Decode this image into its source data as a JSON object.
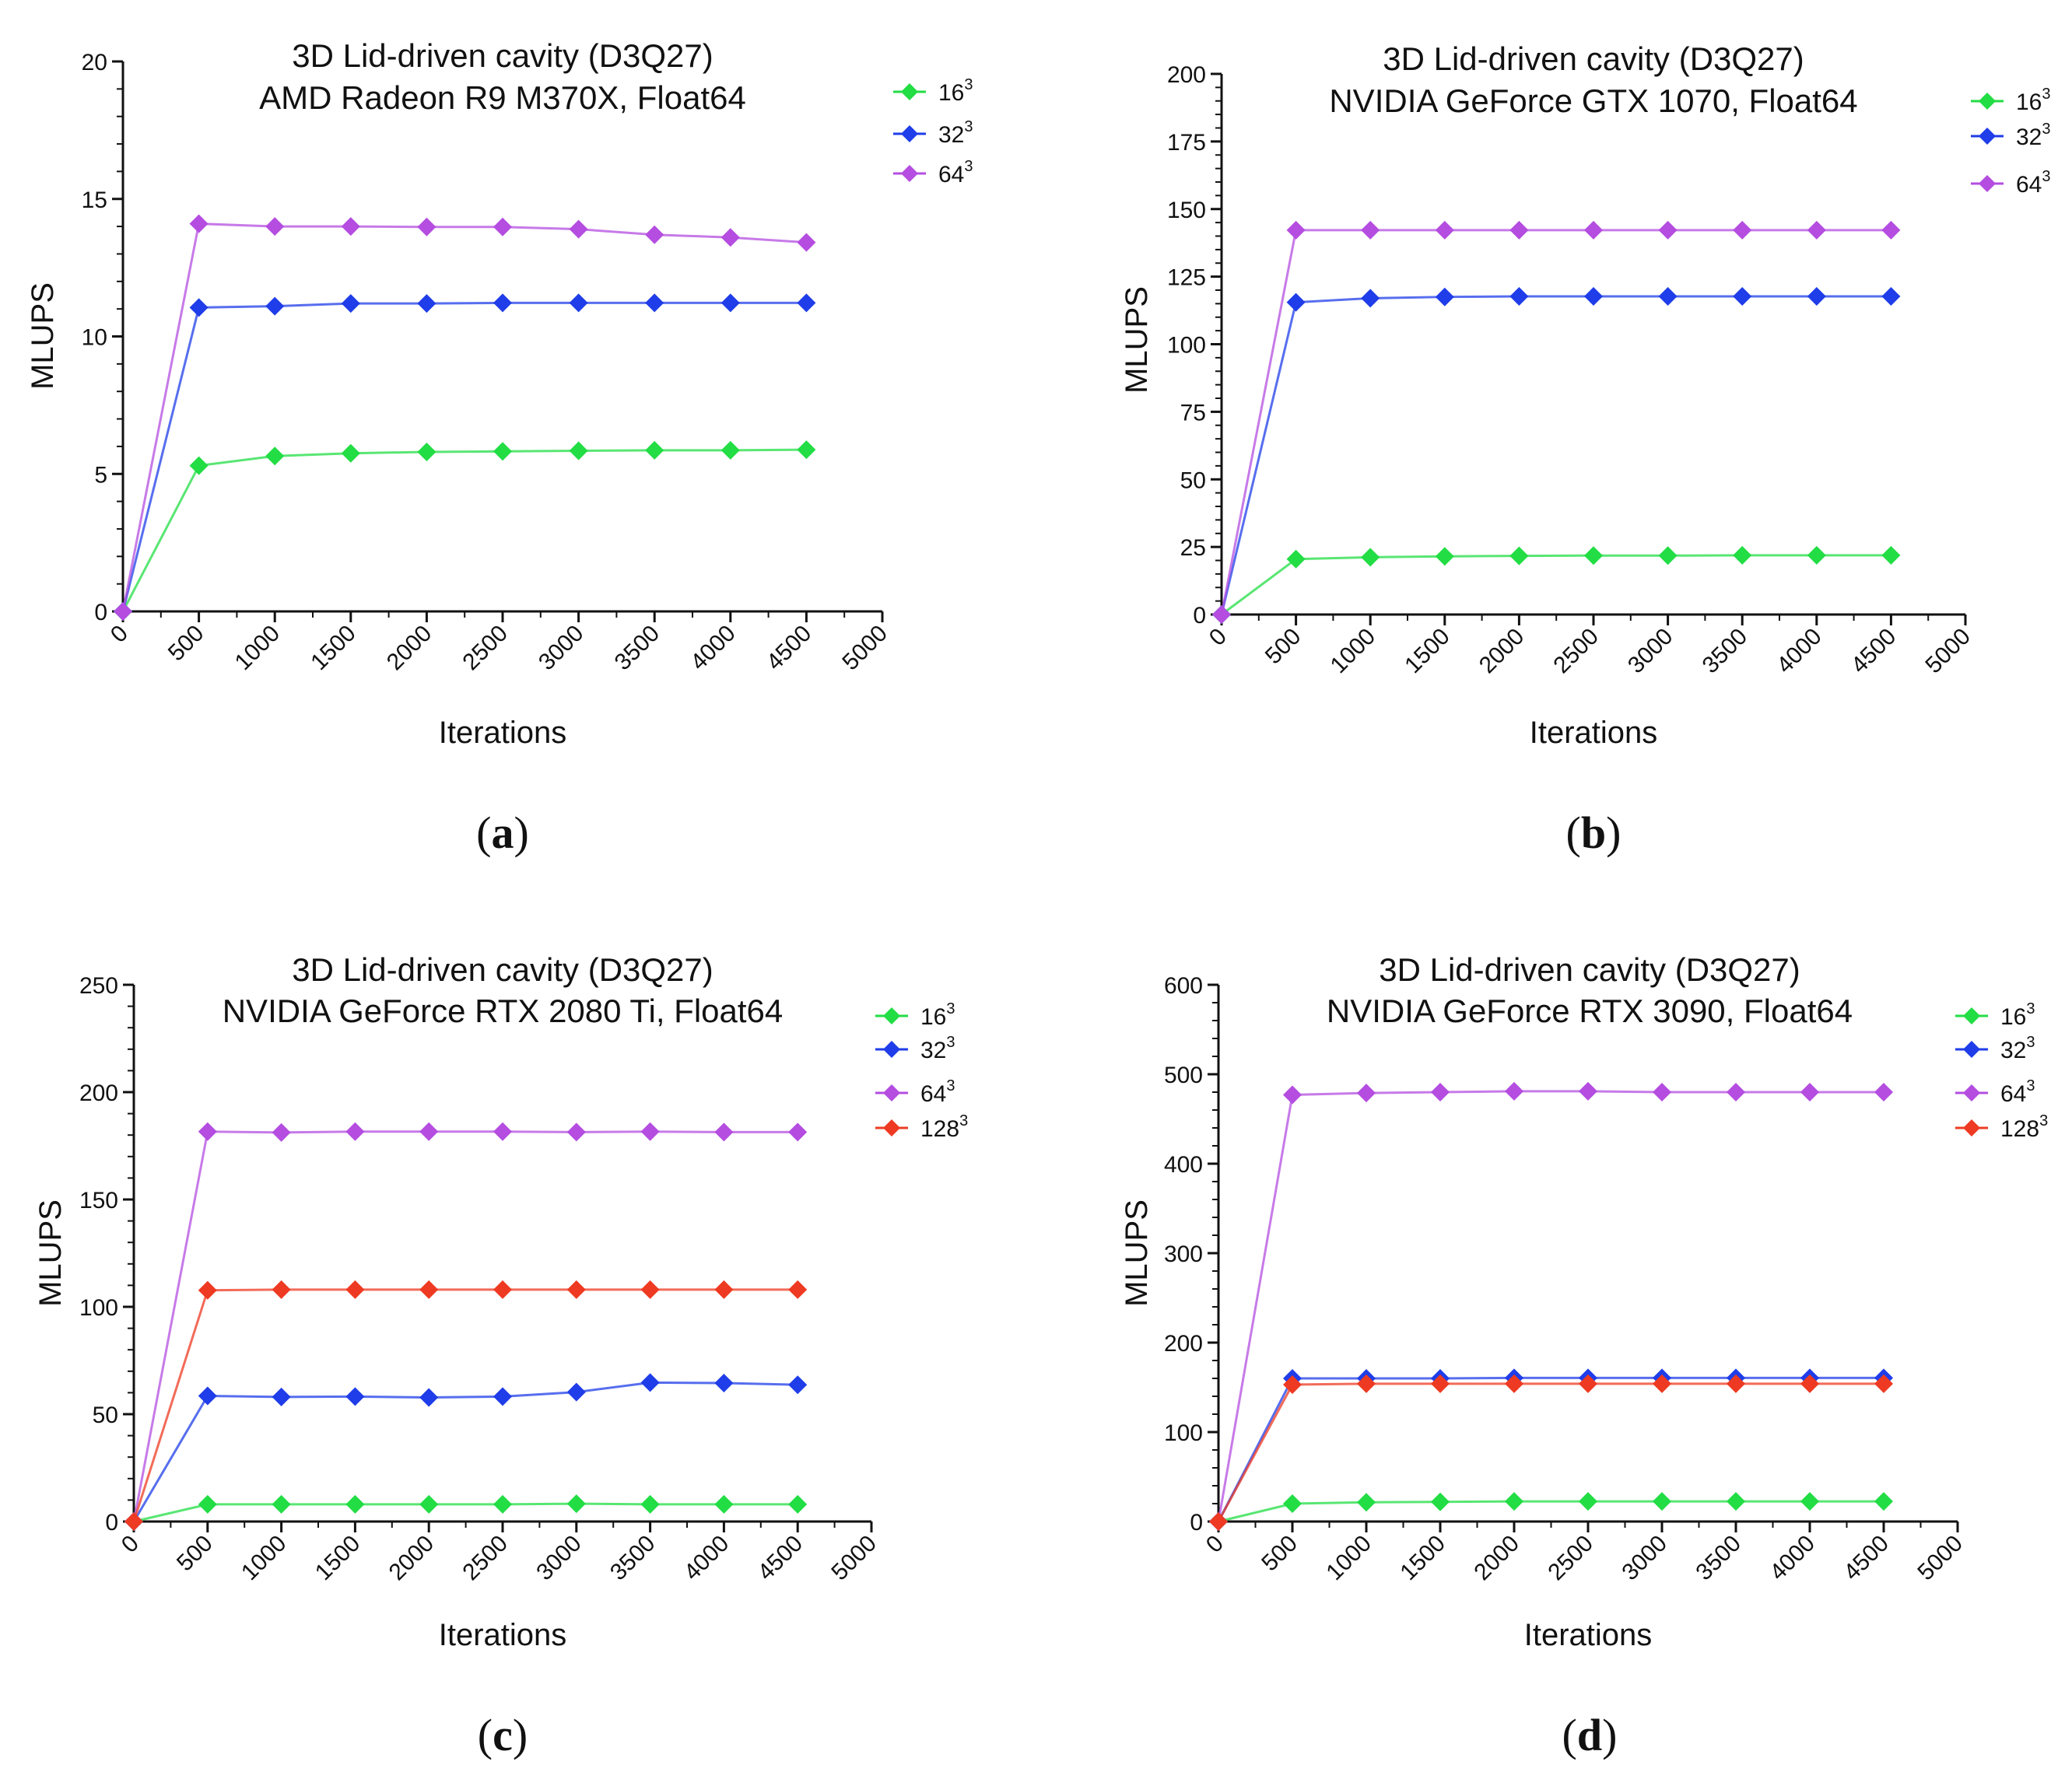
{
  "chart_data": [
    {
      "type": "line",
      "panel": "a",
      "title_line1": "3D Lid-driven cavity (D3Q27)",
      "title_line2": "AMD Radeon R9 M370X, Float64",
      "xlabel": "Iterations",
      "ylabel": "MLUPS",
      "xlim": [
        0,
        5000
      ],
      "ylim": [
        0,
        20
      ],
      "xticks": [
        "0",
        "500",
        "1000",
        "1500",
        "2000",
        "2500",
        "3000",
        "3500",
        "4000",
        "4500",
        "5000"
      ],
      "yticks": [
        "0",
        "5",
        "10",
        "15",
        "20"
      ],
      "x": [
        0,
        500,
        1000,
        1500,
        2000,
        2500,
        3000,
        3500,
        4000,
        4500
      ],
      "series": [
        {
          "name": "16",
          "sup": "3",
          "color": "#22dd44",
          "values": [
            0,
            5.3,
            5.65,
            5.75,
            5.8,
            5.82,
            5.84,
            5.86,
            5.86,
            5.88
          ]
        },
        {
          "name": "32",
          "sup": "3",
          "color": "#1f3de8",
          "values": [
            0,
            11.05,
            11.1,
            11.2,
            11.2,
            11.22,
            11.22,
            11.22,
            11.22,
            11.22
          ]
        },
        {
          "name": "64",
          "sup": "3",
          "color": "#b44de0",
          "values": [
            0,
            14.1,
            14.0,
            14.0,
            13.98,
            13.98,
            13.9,
            13.7,
            13.6,
            13.42
          ]
        }
      ],
      "caption": "a"
    },
    {
      "type": "line",
      "panel": "b",
      "title_line1": "3D Lid-driven cavity (D3Q27)",
      "title_line2": "NVIDIA GeForce GTX 1070, Float64",
      "xlabel": "Iterations",
      "ylabel": "MLUPS",
      "xlim": [
        0,
        5000
      ],
      "ylim": [
        0,
        200
      ],
      "xticks": [
        "0",
        "500",
        "1000",
        "1500",
        "2000",
        "2500",
        "3000",
        "3500",
        "4000",
        "4500",
        "5000"
      ],
      "yticks": [
        "0",
        "25",
        "50",
        "75",
        "100",
        "125",
        "150",
        "175",
        "200"
      ],
      "x": [
        0,
        500,
        1000,
        1500,
        2000,
        2500,
        3000,
        3500,
        4000,
        4500
      ],
      "series": [
        {
          "name": "16",
          "sup": "3",
          "color": "#22dd44",
          "values": [
            0,
            20.5,
            21.2,
            21.5,
            21.7,
            21.8,
            21.8,
            21.9,
            21.9,
            21.9
          ]
        },
        {
          "name": "32",
          "sup": "3",
          "color": "#1f3de8",
          "values": [
            0,
            115.5,
            117,
            117.5,
            117.7,
            117.7,
            117.7,
            117.7,
            117.7,
            117.7
          ]
        },
        {
          "name": "64",
          "sup": "3",
          "color": "#b44de0",
          "values": [
            0,
            142.2,
            142.2,
            142.2,
            142.2,
            142.2,
            142.2,
            142.2,
            142.2,
            142.2
          ]
        }
      ],
      "caption": "b"
    },
    {
      "type": "line",
      "panel": "c",
      "title_line1": "3D Lid-driven cavity (D3Q27)",
      "title_line2": "NVIDIA GeForce RTX 2080 Ti, Float64",
      "xlabel": "Iterations",
      "ylabel": "MLUPS",
      "xlim": [
        0,
        5000
      ],
      "ylim": [
        0,
        250
      ],
      "xticks": [
        "0",
        "500",
        "1000",
        "1500",
        "2000",
        "2500",
        "3000",
        "3500",
        "4000",
        "4500",
        "5000"
      ],
      "yticks": [
        "0",
        "50",
        "100",
        "150",
        "200",
        "250"
      ],
      "x": [
        0,
        500,
        1000,
        1500,
        2000,
        2500,
        3000,
        3500,
        4000,
        4500
      ],
      "series": [
        {
          "name": "16",
          "sup": "3",
          "color": "#22dd44",
          "values": [
            0,
            8,
            8,
            8,
            8,
            8,
            8.3,
            8,
            8,
            8
          ]
        },
        {
          "name": "32",
          "sup": "3",
          "color": "#1f3de8",
          "values": [
            0,
            58.5,
            58,
            58.2,
            57.8,
            58.2,
            60.3,
            64.7,
            64.5,
            63.7
          ]
        },
        {
          "name": "64",
          "sup": "3",
          "color": "#b44de0",
          "values": [
            0,
            181.6,
            181.2,
            181.6,
            181.6,
            181.6,
            181.4,
            181.6,
            181.4,
            181.4
          ]
        },
        {
          "name": "128",
          "sup": "3",
          "color": "#ee3a22",
          "values": [
            0,
            107.7,
            108,
            108,
            108,
            108,
            108,
            108,
            108,
            108
          ]
        }
      ],
      "caption": "c"
    },
    {
      "type": "line",
      "panel": "d",
      "title_line1": "3D Lid-driven cavity (D3Q27)",
      "title_line2": "NVIDIA GeForce RTX 3090, Float64",
      "xlabel": "Iterations",
      "ylabel": "MLUPS",
      "xlim": [
        0,
        5000
      ],
      "ylim": [
        0,
        600
      ],
      "xticks": [
        "0",
        "500",
        "1000",
        "1500",
        "2000",
        "2500",
        "3000",
        "3500",
        "4000",
        "4500",
        "5000"
      ],
      "yticks": [
        "0",
        "100",
        "200",
        "300",
        "400",
        "500",
        "600"
      ],
      "x": [
        0,
        500,
        1000,
        1500,
        2000,
        2500,
        3000,
        3500,
        4000,
        4500
      ],
      "series": [
        {
          "name": "16",
          "sup": "3",
          "color": "#22dd44",
          "values": [
            0,
            20,
            21.5,
            22,
            22.5,
            22.5,
            22.5,
            22.5,
            22.5,
            22.5
          ]
        },
        {
          "name": "32",
          "sup": "3",
          "color": "#1f3de8",
          "values": [
            0,
            160,
            160,
            160,
            160.5,
            160.5,
            160.5,
            160.5,
            160.5,
            160.5
          ]
        },
        {
          "name": "64",
          "sup": "3",
          "color": "#b44de0",
          "values": [
            0,
            477,
            479,
            480,
            481,
            481,
            480,
            480,
            480,
            480
          ]
        },
        {
          "name": "128",
          "sup": "3",
          "color": "#ee3a22",
          "values": [
            0,
            153,
            154,
            154,
            154,
            154,
            154,
            154,
            154,
            154
          ]
        }
      ],
      "caption": "d"
    }
  ]
}
